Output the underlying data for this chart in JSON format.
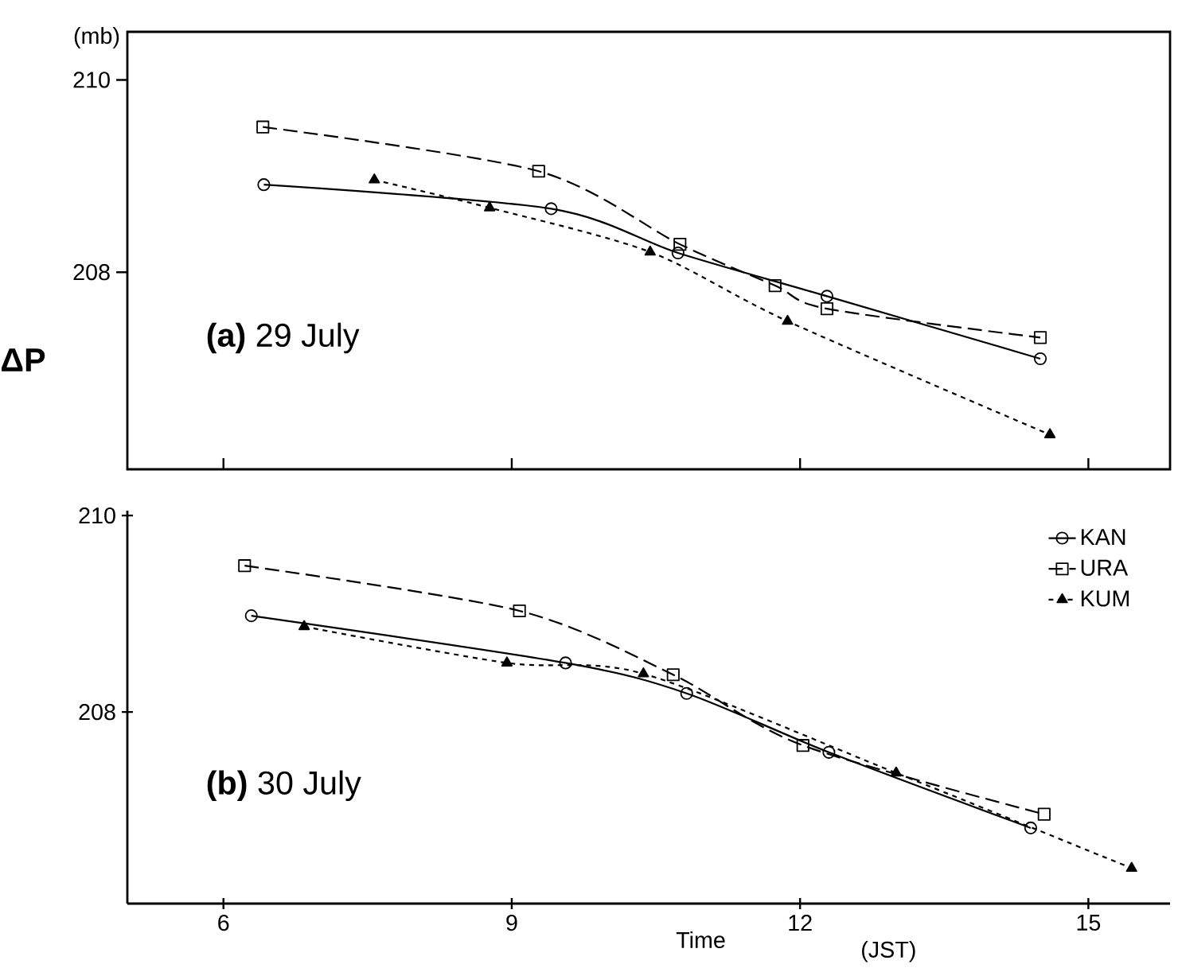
{
  "chart_data": [
    {
      "type": "line",
      "title": "**(a)** 29 July",
      "ylabel": "ΔP",
      "annotations": [
        "(mb)"
      ],
      "xlim": [
        5,
        15.85
      ],
      "ylim": [
        205.95,
        210.5
      ],
      "xticks": [
        6,
        9,
        12,
        15
      ],
      "yticks": [
        208,
        210
      ],
      "tick_labels": "y",
      "series": [
        {
          "color": "#000000",
          "marker": "circle",
          "line_style": "solid",
          "x": [
            6.42,
            9.41,
            10.73,
            12.28,
            14.5
          ],
          "values": [
            208.91,
            208.66,
            208.2,
            207.75,
            207.1
          ]
        },
        {
          "color": "#000000",
          "marker": "square",
          "line_style": "dashed",
          "x": [
            6.41,
            9.28,
            10.75,
            11.74,
            12.28,
            14.5
          ],
          "values": [
            209.51,
            209.05,
            208.29,
            207.86,
            207.62,
            207.32
          ]
        },
        {
          "color": "#000000",
          "marker": "triangle",
          "line_style": "dotted",
          "x": [
            7.57,
            8.77,
            10.44,
            11.87,
            14.6
          ],
          "values": [
            208.96,
            208.67,
            208.21,
            207.49,
            206.31
          ]
        }
      ]
    },
    {
      "type": "line",
      "title": "**(b)** 30 July",
      "xlabel": "Time",
      "annotations": [
        "(JST)"
      ],
      "xlim": [
        5,
        15.85
      ],
      "ylim": [
        206.05,
        210.05
      ],
      "xticks": [
        6,
        9,
        12,
        15
      ],
      "yticks": [
        208,
        210
      ],
      "legend": "top right",
      "series": [
        {
          "name": "KAN",
          "color": "#000000",
          "marker": "circle",
          "line_style": "solid",
          "x": [
            6.29,
            9.56,
            10.82,
            12.3,
            14.4
          ],
          "values": [
            208.98,
            208.5,
            208.19,
            207.59,
            206.82
          ]
        },
        {
          "name": "URA",
          "color": "#000000",
          "marker": "square",
          "line_style": "dashed",
          "x": [
            6.22,
            9.08,
            10.68,
            12.03,
            14.54
          ],
          "values": [
            209.49,
            209.03,
            208.38,
            207.66,
            206.96
          ]
        },
        {
          "name": "KUM",
          "color": "#000000",
          "marker": "triangle",
          "line_style": "dotted",
          "x": [
            6.84,
            8.95,
            10.37,
            13.0,
            15.45
          ],
          "values": [
            208.87,
            208.5,
            208.39,
            207.38,
            206.41
          ]
        }
      ]
    }
  ]
}
